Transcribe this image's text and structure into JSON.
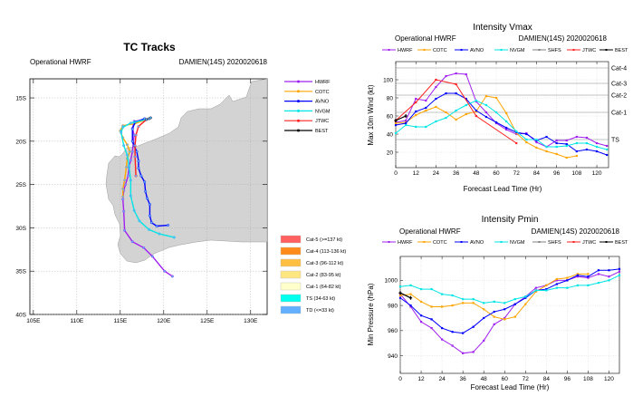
{
  "colors": {
    "HWRF": "#a020f0",
    "COTC": "#ffa500",
    "AVNO": "#0000ff",
    "NVGM": "#00e5e5",
    "SHFS": "#808080",
    "JTWC": "#ff2020",
    "BEST": "#000000",
    "land": "#d3d3d3"
  },
  "chart_data": [
    {
      "type": "line",
      "title": "TC Tracks",
      "subtitle_left": "Operational HWRF",
      "subtitle_right": "DAMIEN(14S) 2020020618",
      "xlim": [
        104.6,
        131.9
      ],
      "ylim": [
        12.8,
        40
      ],
      "x_ticks": [
        "105E",
        "110E",
        "115E",
        "120E",
        "125E",
        "130E"
      ],
      "y_ticks": [
        "15S",
        "20S",
        "25S",
        "30S",
        "35S",
        "40S"
      ],
      "grid": true,
      "legend_tracks": [
        "HWRF",
        "COTC",
        "AVNO",
        "NVGM",
        "JTWC",
        "BEST"
      ],
      "legend_categories": [
        {
          "label": "Cat-5 (>=137 kt)",
          "color": "#ff6060"
        },
        {
          "label": "Cat-4 (113-136 kt)",
          "color": "#ff8c1a"
        },
        {
          "label": "Cat-3 (96-112 kt)",
          "color": "#ffbf40"
        },
        {
          "label": "Cat-2 (83-95 kt)",
          "color": "#ffe680"
        },
        {
          "label": "Cat-1 (64-82 kt)",
          "color": "#ffffcc"
        },
        {
          "label": "TS (34-63 kt)",
          "color": "#00ffee"
        },
        {
          "label": "TD (<=33 kt)",
          "color": "#60b0ff"
        }
      ],
      "series": [
        {
          "name": "HWRF",
          "points_lat_lon": [
            [
              17.5,
              118.0
            ],
            [
              17.7,
              116.6
            ],
            [
              18.5,
              116.4
            ],
            [
              19.3,
              116.6
            ],
            [
              20.2,
              116.5
            ],
            [
              21.2,
              116.4
            ],
            [
              22.2,
              116.2
            ],
            [
              23.0,
              116.0
            ],
            [
              24.0,
              115.9
            ],
            [
              25.0,
              115.6
            ],
            [
              25.7,
              115.4
            ],
            [
              26.7,
              115.3
            ],
            [
              28.1,
              115.4
            ],
            [
              30.3,
              115.5
            ],
            [
              31.6,
              116.4
            ],
            [
              32.3,
              117.7
            ],
            [
              33.3,
              118.7
            ],
            [
              35.0,
              120.1
            ],
            [
              35.6,
              121.0
            ]
          ]
        },
        {
          "name": "COTC",
          "points_lat_lon": [
            [
              17.5,
              118.0
            ],
            [
              18.0,
              116.6
            ],
            [
              18.2,
              115.3
            ],
            [
              18.8,
              115.0
            ],
            [
              19.6,
              115.3
            ],
            [
              20.4,
              115.8
            ],
            [
              21.2,
              116.1
            ],
            [
              22.0,
              115.8
            ],
            [
              23.0,
              115.7
            ],
            [
              24.5,
              115.5
            ],
            [
              25.5,
              115.3
            ],
            [
              26.4,
              115.3
            ]
          ]
        },
        {
          "name": "AVNO",
          "points_lat_lon": [
            [
              17.4,
              117.8
            ],
            [
              17.8,
              116.7
            ],
            [
              18.6,
              116.4
            ],
            [
              20.0,
              116.4
            ],
            [
              20.5,
              116.6
            ],
            [
              21.2,
              116.9
            ],
            [
              22.3,
              117.1
            ],
            [
              23.1,
              117.1
            ],
            [
              24.0,
              117.4
            ],
            [
              24.7,
              117.8
            ],
            [
              25.8,
              117.9
            ],
            [
              26.6,
              118.1
            ],
            [
              27.3,
              118.4
            ],
            [
              28.6,
              118.4
            ],
            [
              29.4,
              118.6
            ],
            [
              29.8,
              119.2
            ],
            [
              29.7,
              120.5
            ]
          ]
        },
        {
          "name": "NVGM",
          "points_lat_lon": [
            [
              17.5,
              118.0
            ],
            [
              17.9,
              116.2
            ],
            [
              18.4,
              115.3
            ],
            [
              19.0,
              115.1
            ],
            [
              20.5,
              115.4
            ],
            [
              21.6,
              115.8
            ],
            [
              22.8,
              116.0
            ],
            [
              24.5,
              116.2
            ],
            [
              26.3,
              116.2
            ],
            [
              28.0,
              116.6
            ],
            [
              29.2,
              117.2
            ],
            [
              30.2,
              118.3
            ],
            [
              30.7,
              119.5
            ],
            [
              31.1,
              121.2
            ]
          ]
        },
        {
          "name": "JTWC",
          "points_lat_lon": [
            [
              17.5,
              118.0
            ],
            [
              18.3,
              117.1
            ],
            [
              19.3,
              116.8
            ],
            [
              20.5,
              116.7
            ],
            [
              21.8,
              116.7
            ],
            [
              24.0,
              116.8
            ]
          ]
        },
        {
          "name": "BEST",
          "points_lat_lon": [
            [
              17.5,
              118.0
            ],
            [
              17.4,
              118.3
            ],
            [
              17.3,
              118.5
            ]
          ]
        }
      ]
    },
    {
      "type": "line",
      "title": "Intensity Vmax",
      "subtitle_left": "Operational HWRF",
      "subtitle_right": "DAMIEN(14S) 2020020618",
      "xlabel": "Forecast Lead Time (Hr)",
      "ylabel": "Max 10m Wind (kt)",
      "xlim": [
        0,
        127
      ],
      "ylim": [
        3,
        120
      ],
      "x_ticks": [
        0,
        12,
        24,
        36,
        48,
        60,
        72,
        84,
        96,
        108,
        120
      ],
      "y_ticks": [
        20,
        40,
        60,
        80,
        100
      ],
      "grid": true,
      "legend": [
        "HWRF",
        "COTC",
        "AVNO",
        "NVGM",
        "SHFS",
        "JTWC",
        "BEST"
      ],
      "legend_placement": "top",
      "category_lines": [
        {
          "label": "TS",
          "value": 34
        },
        {
          "label": "Cat-1",
          "value": 64
        },
        {
          "label": "Cat-2",
          "value": 83
        },
        {
          "label": "Cat-3",
          "value": 96
        },
        {
          "label": "Cat-4",
          "value": 113
        }
      ],
      "series": [
        {
          "name": "HWRF",
          "x": [
            0,
            6,
            12,
            18,
            24,
            30,
            36,
            42,
            48,
            54,
            60,
            66,
            72,
            78,
            84,
            90,
            96,
            102,
            108,
            114,
            120,
            126
          ],
          "values": [
            53,
            55,
            79,
            77,
            92,
            104,
            107,
            106,
            76,
            64,
            52,
            45,
            40,
            41,
            31,
            26,
            33,
            33,
            37,
            36,
            30,
            27
          ]
        },
        {
          "name": "COTC",
          "x": [
            0,
            6,
            12,
            18,
            24,
            30,
            36,
            42,
            48,
            54,
            60,
            66,
            72,
            78,
            84,
            90,
            96,
            102,
            108
          ],
          "values": [
            52,
            53,
            61,
            66,
            70,
            64,
            56,
            62,
            65,
            82,
            80,
            63,
            41,
            31,
            25,
            21,
            18,
            14,
            16
          ]
        },
        {
          "name": "AVNO",
          "x": [
            0,
            6,
            12,
            18,
            24,
            30,
            36,
            42,
            48,
            54,
            60,
            66,
            72,
            78,
            84,
            90,
            96,
            102,
            108,
            114,
            120,
            126
          ],
          "values": [
            50,
            52,
            65,
            69,
            79,
            85,
            85,
            79,
            66,
            59,
            53,
            47,
            42,
            40,
            33,
            37,
            30,
            29,
            21,
            23,
            21,
            17
          ]
        },
        {
          "name": "NVGM",
          "x": [
            0,
            6,
            12,
            18,
            24,
            30,
            36,
            42,
            48,
            54,
            60,
            66,
            72,
            78,
            84,
            90,
            96,
            102,
            108,
            114,
            120,
            126
          ],
          "values": [
            41,
            50,
            48,
            48,
            54,
            58,
            66,
            72,
            77,
            72,
            64,
            54,
            43,
            34,
            34,
            26,
            26,
            27,
            30,
            30,
            26,
            23
          ]
        },
        {
          "name": "JTWC",
          "x": [
            0,
            12,
            24,
            36,
            48,
            72
          ],
          "values": [
            55,
            75,
            100,
            95,
            60,
            30
          ]
        },
        {
          "name": "BEST",
          "x": [
            0,
            6
          ],
          "values": [
            55,
            60
          ]
        }
      ]
    },
    {
      "type": "line",
      "title": "Intensity Pmin",
      "subtitle_left": "Operational HWRF",
      "subtitle_right": "DAMIEN(14S) 2020020618",
      "xlabel": "Forecast Lead Time (Hr)",
      "ylabel": "Min Pressure (hPa)",
      "xlim": [
        0,
        126
      ],
      "ylim": [
        926,
        1019
      ],
      "x_ticks": [
        0,
        12,
        24,
        36,
        48,
        60,
        72,
        84,
        96,
        108,
        120
      ],
      "y_ticks": [
        940,
        960,
        980,
        1000
      ],
      "grid": true,
      "legend": [
        "HWRF",
        "COTC",
        "AVNO",
        "NVGM",
        "SHFS",
        "JTWC",
        "BEST"
      ],
      "legend_placement": "top",
      "series": [
        {
          "name": "HWRF",
          "x": [
            0,
            6,
            12,
            18,
            24,
            30,
            36,
            42,
            48,
            54,
            60,
            66,
            72,
            78,
            84,
            90,
            96,
            102,
            108,
            114,
            120,
            126
          ],
          "values": [
            989,
            979,
            967,
            962,
            953,
            948,
            942,
            943,
            952,
            965,
            970,
            981,
            987,
            994,
            996,
            1000,
            1000,
            1003,
            1002,
            1005,
            1003,
            1007
          ]
        },
        {
          "name": "COTC",
          "x": [
            0,
            6,
            12,
            18,
            24,
            30,
            36,
            42,
            48,
            54,
            60,
            66,
            72,
            78,
            84,
            90,
            96,
            102,
            108
          ],
          "values": [
            988,
            989,
            983,
            979,
            979,
            980,
            982,
            982,
            977,
            971,
            969,
            971,
            981,
            991,
            996,
            1001,
            1002,
            1005,
            1005
          ]
        },
        {
          "name": "AVNO",
          "x": [
            0,
            6,
            12,
            18,
            24,
            30,
            36,
            42,
            48,
            54,
            60,
            66,
            72,
            78,
            84,
            90,
            96,
            102,
            108,
            114,
            120,
            126
          ],
          "values": [
            986,
            980,
            972,
            969,
            962,
            959,
            958,
            963,
            970,
            975,
            977,
            981,
            986,
            992,
            993,
            997,
            1000,
            1004,
            1003,
            1008,
            1008,
            1009
          ]
        },
        {
          "name": "NVGM",
          "x": [
            0,
            6,
            12,
            18,
            24,
            30,
            36,
            42,
            48,
            54,
            60,
            66,
            72,
            78,
            84,
            90,
            96,
            102,
            108,
            114,
            120,
            126
          ],
          "values": [
            995,
            996,
            993,
            993,
            989,
            988,
            985,
            985,
            982,
            983,
            982,
            985,
            987,
            992,
            992,
            994,
            994,
            996,
            996,
            998,
            1000,
            1004
          ]
        },
        {
          "name": "BEST",
          "x": [
            0,
            6
          ],
          "values": [
            990,
            986
          ]
        }
      ]
    }
  ]
}
